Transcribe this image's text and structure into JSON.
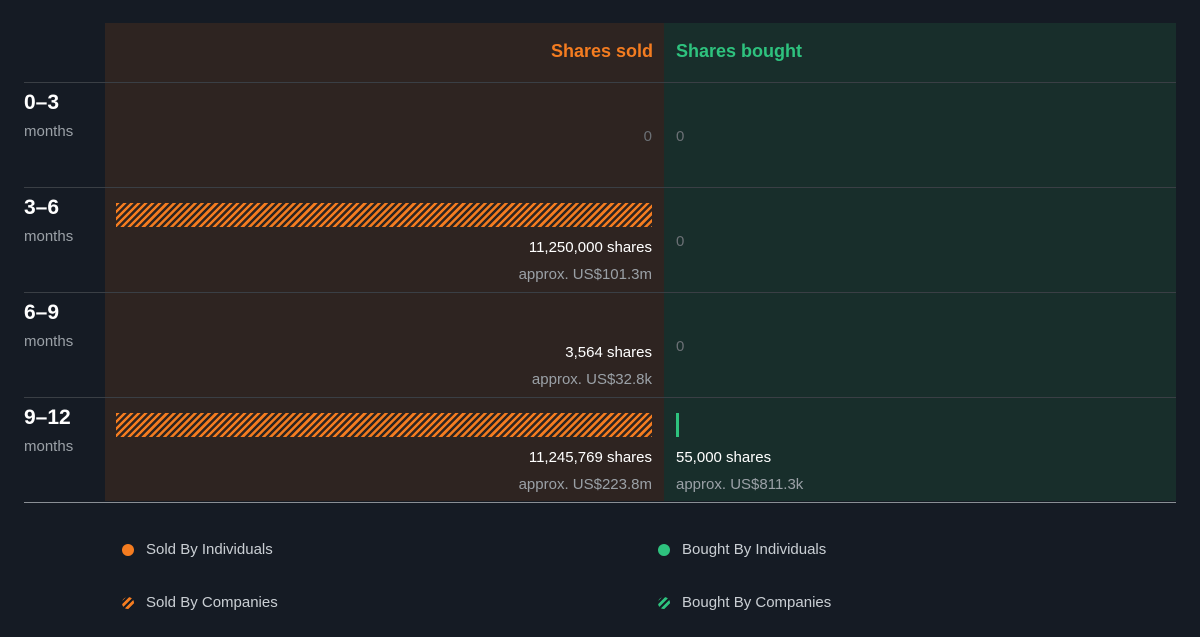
{
  "chart_data": {
    "type": "bar",
    "headers": {
      "sold": "Shares sold",
      "bought": "Shares bought"
    },
    "colors": {
      "sold": "#f47c20",
      "bought": "#2ec27e"
    },
    "periods": [
      {
        "range": "0–3",
        "unit": "months",
        "sold": {
          "value": 0,
          "label": "0",
          "approx": ""
        },
        "bought": {
          "value": 0,
          "label": "0",
          "approx": ""
        }
      },
      {
        "range": "3–6",
        "unit": "months",
        "sold": {
          "value": 11250000,
          "label": "11,250,000 shares",
          "approx": "approx. US$101.3m"
        },
        "bought": {
          "value": 0,
          "label": "0",
          "approx": ""
        }
      },
      {
        "range": "6–9",
        "unit": "months",
        "sold": {
          "value": 3564,
          "label": "3,564 shares",
          "approx": "approx. US$32.8k"
        },
        "bought": {
          "value": 0,
          "label": "0",
          "approx": ""
        }
      },
      {
        "range": "9–12",
        "unit": "months",
        "sold": {
          "value": 11245769,
          "label": "11,245,769 shares",
          "approx": "approx. US$223.8m"
        },
        "bought": {
          "value": 55000,
          "label": "55,000 shares",
          "approx": "approx. US$811.3k"
        }
      }
    ],
    "legend": [
      {
        "label": "Sold By Individuals",
        "kind": "individuals",
        "side": "sold"
      },
      {
        "label": "Bought By Individuals",
        "kind": "individuals",
        "side": "bought"
      },
      {
        "label": "Sold By Companies",
        "kind": "companies",
        "side": "sold"
      },
      {
        "label": "Bought By Companies",
        "kind": "companies",
        "side": "bought"
      }
    ]
  }
}
